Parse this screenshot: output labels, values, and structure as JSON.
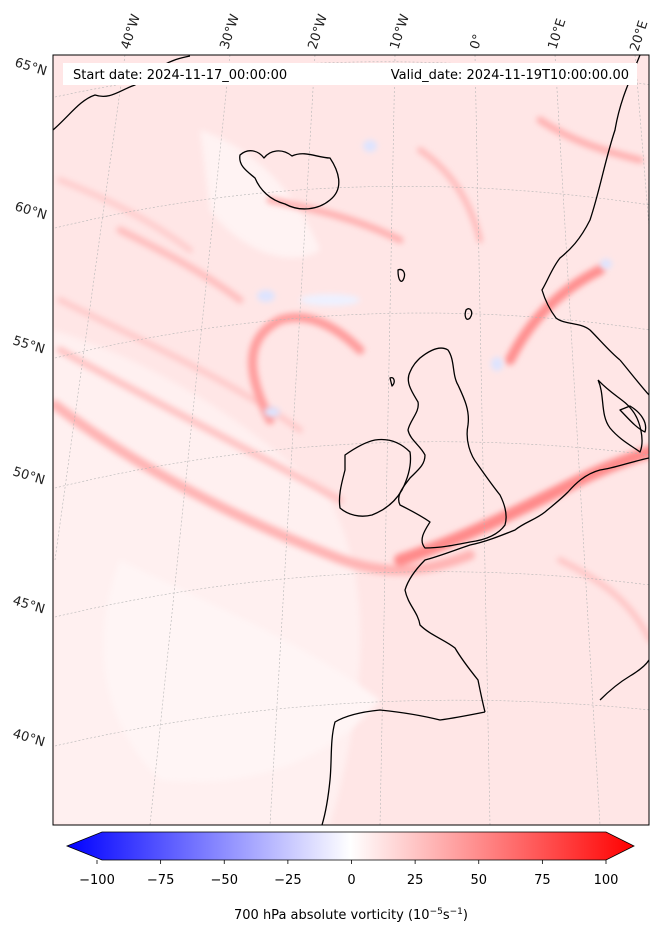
{
  "header": {
    "start_date": "Start date: 2024-11-17_00:00:00",
    "valid_date": "Valid_date: 2024-11-19T10:00:00.00"
  },
  "longitude_labels": [
    "40°W",
    "30°W",
    "20°W",
    "10°W",
    "0°",
    "10°E",
    "20°E"
  ],
  "latitude_labels": [
    "65°N",
    "60°N",
    "55°N",
    "50°N",
    "45°N",
    "40°N"
  ],
  "colorbar": {
    "ticks": [
      "−100",
      "−75",
      "−50",
      "−25",
      "0",
      "25",
      "50",
      "75",
      "100"
    ],
    "tick_values": [
      -100,
      -75,
      -50,
      -25,
      0,
      25,
      50,
      75,
      100
    ],
    "range": [
      -100,
      100
    ],
    "label_prefix": "700 hPa absolute vorticity (10",
    "label_sup1": "−5",
    "label_mid": "s",
    "label_sup2": "−1",
    "label_suffix": ")",
    "colors": {
      "min": "#0000ff",
      "mid": "#ffffff",
      "max": "#ff0000"
    }
  },
  "map": {
    "field_base_color": "#ffe3e3",
    "coast_color": "#000000",
    "grid_color": "#b0b0b0"
  }
}
